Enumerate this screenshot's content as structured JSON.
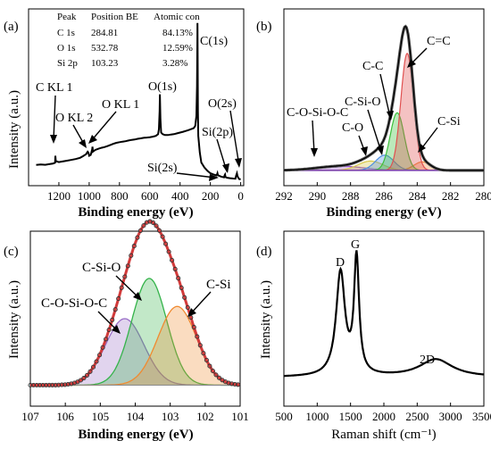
{
  "chart_data": [
    {
      "id": "a",
      "type": "line",
      "panel_label": "(a)",
      "xlabel": "Binding energy (eV)",
      "ylabel": "Intensity (a.u.)",
      "xlim": [
        1400,
        -20
      ],
      "x_ticks": [
        "1200",
        "1000",
        "800",
        "600",
        "400",
        "200",
        "0"
      ],
      "x_tick_values": [
        1200,
        1000,
        800,
        600,
        400,
        200,
        0
      ],
      "table": {
        "header": [
          "Peak",
          "Position BE",
          "Atomic con"
        ],
        "rows": [
          [
            "C 1s",
            "284.81",
            "84.13%"
          ],
          [
            "O 1s",
            "532.78",
            "12.59%"
          ],
          [
            "Si 2p",
            "103.23",
            "3.28%"
          ]
        ]
      },
      "annotations": [
        {
          "text": "C(1s)",
          "x": 285
        },
        {
          "text": "O(1s)",
          "x": 533
        },
        {
          "text": "O(2s)",
          "x": 25
        },
        {
          "text": "Si(2p)",
          "x": 103
        },
        {
          "text": "Si(2s)",
          "x": 153
        },
        {
          "text": "C KL 1",
          "x": 1223
        },
        {
          "text": "O KL 2",
          "x": 1010
        },
        {
          "text": "O KL 1",
          "x": 978
        }
      ],
      "series": [
        {
          "x": [
            1350,
            1320,
            1290,
            1260,
            1240,
            1225,
            1223,
            1220,
            1200,
            1180,
            1150,
            1120,
            1090,
            1060,
            1040,
            1020,
            1010,
            1005,
            1000,
            990,
            980,
            978,
            975,
            960,
            940,
            920,
            900,
            880,
            860,
            840,
            820,
            800,
            780,
            760,
            740,
            720,
            700,
            680,
            660,
            640,
            620,
            600,
            580,
            560,
            545,
            540,
            535,
            533,
            530,
            525,
            515,
            500,
            480,
            460,
            440,
            420,
            400,
            380,
            360,
            350,
            340,
            330,
            320,
            310,
            300,
            292,
            288,
            286,
            285,
            284,
            282,
            280,
            270,
            260,
            240,
            220,
            200,
            180,
            160,
            155,
            153,
            150,
            130,
            110,
            105,
            103,
            100,
            90,
            70,
            50,
            35,
            30,
            25,
            20,
            10,
            0
          ],
          "y": [
            0.125,
            0.128,
            0.126,
            0.13,
            0.133,
            0.138,
            0.18,
            0.148,
            0.142,
            0.145,
            0.15,
            0.155,
            0.16,
            0.168,
            0.178,
            0.19,
            0.205,
            0.2,
            0.18,
            0.185,
            0.22,
            0.235,
            0.205,
            0.215,
            0.222,
            0.228,
            0.232,
            0.238,
            0.245,
            0.252,
            0.258,
            0.262,
            0.265,
            0.268,
            0.272,
            0.276,
            0.278,
            0.282,
            0.285,
            0.288,
            0.29,
            0.292,
            0.295,
            0.3,
            0.31,
            0.34,
            0.45,
            0.55,
            0.4,
            0.32,
            0.31,
            0.305,
            0.305,
            0.308,
            0.31,
            0.315,
            0.32,
            0.325,
            0.33,
            0.333,
            0.336,
            0.34,
            0.343,
            0.346,
            0.36,
            0.42,
            0.6,
            0.88,
            0.98,
            0.8,
            0.45,
            0.3,
            0.2,
            0.14,
            0.11,
            0.09,
            0.075,
            0.068,
            0.062,
            0.07,
            0.075,
            0.063,
            0.055,
            0.05,
            0.065,
            0.068,
            0.052,
            0.048,
            0.045,
            0.043,
            0.042,
            0.06,
            0.075,
            0.055,
            0.04,
            0.038
          ]
        }
      ]
    },
    {
      "id": "b",
      "type": "line",
      "panel_label": "(b)",
      "xlabel": "Binding energy (eV)",
      "xlim": [
        292,
        280
      ],
      "x_ticks": [
        "292",
        "290",
        "288",
        "286",
        "284",
        "282",
        "280"
      ],
      "x_tick_values": [
        292,
        290,
        288,
        286,
        284,
        282,
        280
      ],
      "envelope_peak": 284.8,
      "components": [
        {
          "name": "C=C",
          "center": 284.6,
          "sigma": 0.38,
          "amplitude": 0.69,
          "color": "#e05050"
        },
        {
          "name": "C-C",
          "center": 285.2,
          "sigma": 0.42,
          "amplitude": 0.34,
          "color": "#3cbf3c"
        },
        {
          "name": "C-Si-O",
          "center": 285.95,
          "sigma": 0.55,
          "amplitude": 0.09,
          "color": "#4f8fe0"
        },
        {
          "name": "C-O",
          "center": 286.8,
          "sigma": 0.75,
          "amplitude": 0.055,
          "color": "#d8c84a"
        },
        {
          "name": "C-O-Si-O-C",
          "center": 288.6,
          "sigma": 1.4,
          "amplitude": 0.025,
          "color": "#9a4fd0"
        },
        {
          "name": "C-Si",
          "center": 283.7,
          "sigma": 0.5,
          "amplitude": 0.05,
          "color": "#f08a40"
        }
      ],
      "annotations": [
        {
          "text": "C=C",
          "x": 284.6
        },
        {
          "text": "C-C",
          "x": 285.2
        },
        {
          "text": "C-Si-O",
          "x": 285.95
        },
        {
          "text": "C-O",
          "x": 286.8
        },
        {
          "text": "C-O-Si-O-C",
          "x": 288.6
        },
        {
          "text": "C-Si",
          "x": 283.7
        }
      ]
    },
    {
      "id": "c",
      "type": "line",
      "panel_label": "(c)",
      "xlabel": "Binding energy (eV)",
      "ylabel": "Intensity (a.u.)",
      "xlim": [
        107,
        101
      ],
      "x_ticks": [
        "107",
        "106",
        "105",
        "104",
        "103",
        "102",
        "101"
      ],
      "x_tick_values": [
        107,
        106,
        105,
        104,
        103,
        102,
        101
      ],
      "components": [
        {
          "name": "C-O-Si-O-C",
          "center": 104.3,
          "sigma": 0.55,
          "amplitude": 0.38,
          "color": "#9a6fc8"
        },
        {
          "name": "C-Si-O",
          "center": 103.6,
          "sigma": 0.5,
          "amplitude": 0.61,
          "color": "#34b34a"
        },
        {
          "name": "C-Si",
          "center": 102.8,
          "sigma": 0.55,
          "amplitude": 0.45,
          "color": "#f08a30"
        }
      ],
      "annotations": [
        {
          "text": "C-Si-O",
          "x": 103.6
        },
        {
          "text": "C-O-Si-O-C",
          "x": 104.3
        },
        {
          "text": "C-Si",
          "x": 102.8
        }
      ]
    },
    {
      "id": "d",
      "type": "line",
      "panel_label": "(d)",
      "xlabel": "Raman shift (cm⁻¹)",
      "ylabel": "Intensity (a.u.)",
      "xlim": [
        500,
        3500
      ],
      "x_ticks": [
        "500",
        "1000",
        "1500",
        "2000",
        "2500",
        "3000",
        "3500"
      ],
      "x_tick_values": [
        500,
        1000,
        1500,
        2000,
        2500,
        3000,
        3500
      ],
      "bands": [
        {
          "name": "D",
          "center": 1350,
          "width": 80,
          "amplitude": 0.7
        },
        {
          "name": "G",
          "center": 1590,
          "width": 45,
          "amplitude": 0.78
        },
        {
          "name": "2D",
          "center": 2780,
          "width": 300,
          "amplitude": 0.12
        }
      ],
      "background_level": 0.05,
      "annotations": [
        {
          "text": "D",
          "x": 1350
        },
        {
          "text": "G",
          "x": 1590
        },
        {
          "text": "2D",
          "x": 2780
        }
      ]
    }
  ]
}
